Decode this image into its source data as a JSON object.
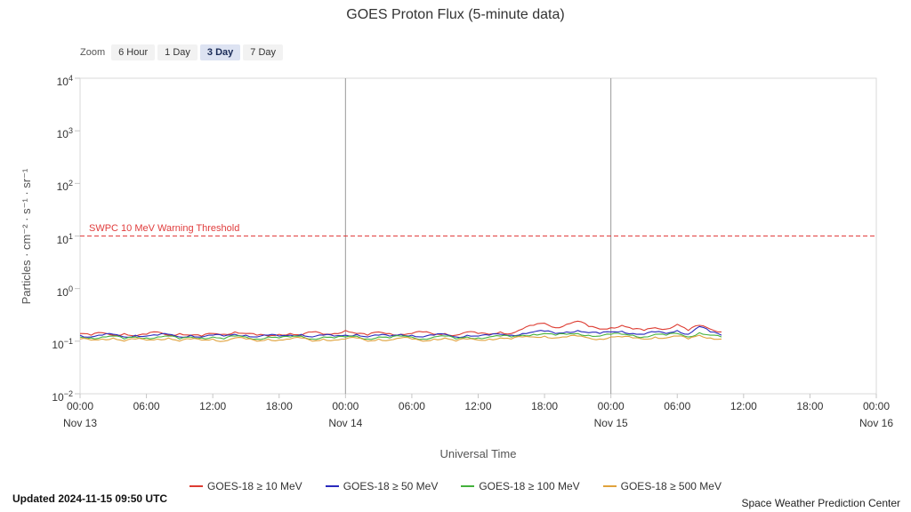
{
  "header": {
    "title": "GOES Proton Flux (5-minute data)"
  },
  "zoom": {
    "label": "Zoom",
    "options": [
      {
        "label": "6 Hour",
        "selected": false
      },
      {
        "label": "1 Day",
        "selected": false
      },
      {
        "label": "3 Day",
        "selected": true
      },
      {
        "label": "7 Day",
        "selected": false
      }
    ]
  },
  "footer": {
    "updated": "Updated 2024-11-15 09:50 UTC",
    "credit": "Space Weather Prediction Center"
  },
  "chart_data": {
    "type": "line",
    "title": "GOES Proton Flux (5-minute data)",
    "xlabel": "Universal Time",
    "ylabel": "Particles · cm⁻² · s⁻¹ · sr⁻¹",
    "y_scale": "log",
    "ylim_exponents": [
      -2,
      4
    ],
    "y_tick_exponents": [
      4,
      3,
      2,
      1,
      0,
      -1,
      -2
    ],
    "x_range_hours": [
      0,
      72
    ],
    "x_tick_interval_hours": 6,
    "x_tick_labels": [
      "00:00",
      "06:00",
      "12:00",
      "18:00",
      "00:00",
      "06:00",
      "12:00",
      "18:00",
      "00:00",
      "06:00",
      "12:00",
      "18:00",
      "00:00"
    ],
    "x_day_labels": [
      {
        "label": "Nov 13",
        "hour": 0
      },
      {
        "label": "Nov 14",
        "hour": 24
      },
      {
        "label": "Nov 15",
        "hour": 48
      },
      {
        "label": "Nov 16",
        "hour": 72
      }
    ],
    "day_gridline_hours": [
      24,
      48
    ],
    "grid": false,
    "legend_position": "bottom",
    "threshold": {
      "label": "SWPC 10 MeV Warning Threshold",
      "value": 10,
      "color": "#e03c3c"
    },
    "sample_interval_hours": 1,
    "series": [
      {
        "name": "GOES-18 ≥ 10 MeV",
        "color": "#dd3c32",
        "values": [
          0.14,
          0.13,
          0.145,
          0.13,
          0.14,
          0.125,
          0.135,
          0.15,
          0.13,
          0.14,
          0.13,
          0.125,
          0.14,
          0.135,
          0.15,
          0.14,
          0.13,
          0.125,
          0.135,
          0.14,
          0.13,
          0.15,
          0.135,
          0.14,
          0.16,
          0.14,
          0.13,
          0.15,
          0.14,
          0.135,
          0.14,
          0.15,
          0.135,
          0.14,
          0.13,
          0.15,
          0.14,
          0.135,
          0.15,
          0.14,
          0.17,
          0.2,
          0.22,
          0.18,
          0.21,
          0.24,
          0.19,
          0.17,
          0.18,
          0.2,
          0.17,
          0.16,
          0.18,
          0.17,
          0.21,
          0.16,
          0.2,
          0.17,
          0.15
        ]
      },
      {
        "name": "GOES-18 ≥ 50 MeV",
        "color": "#2a2abd",
        "values": [
          0.13,
          0.12,
          0.13,
          0.135,
          0.12,
          0.13,
          0.125,
          0.13,
          0.135,
          0.12,
          0.13,
          0.12,
          0.13,
          0.125,
          0.135,
          0.13,
          0.12,
          0.13,
          0.125,
          0.13,
          0.135,
          0.12,
          0.13,
          0.125,
          0.13,
          0.135,
          0.12,
          0.13,
          0.125,
          0.135,
          0.13,
          0.12,
          0.13,
          0.135,
          0.12,
          0.13,
          0.125,
          0.13,
          0.135,
          0.13,
          0.14,
          0.15,
          0.155,
          0.14,
          0.15,
          0.16,
          0.145,
          0.14,
          0.15,
          0.155,
          0.14,
          0.135,
          0.15,
          0.14,
          0.16,
          0.135,
          0.19,
          0.15,
          0.13
        ]
      },
      {
        "name": "GOES-18 ≥ 100 MeV",
        "color": "#44b13c",
        "values": [
          0.12,
          0.115,
          0.12,
          0.125,
          0.11,
          0.12,
          0.115,
          0.12,
          0.125,
          0.11,
          0.12,
          0.115,
          0.12,
          0.11,
          0.125,
          0.12,
          0.11,
          0.12,
          0.115,
          0.12,
          0.125,
          0.11,
          0.12,
          0.115,
          0.12,
          0.125,
          0.11,
          0.12,
          0.115,
          0.125,
          0.12,
          0.11,
          0.12,
          0.125,
          0.11,
          0.12,
          0.115,
          0.12,
          0.125,
          0.12,
          0.13,
          0.135,
          0.14,
          0.13,
          0.135,
          0.14,
          0.13,
          0.125,
          0.135,
          0.135,
          0.13,
          0.12,
          0.135,
          0.13,
          0.14,
          0.12,
          0.145,
          0.13,
          0.12
        ]
      },
      {
        "name": "GOES-18 ≥ 500 MeV",
        "color": "#e0a23c",
        "values": [
          0.11,
          0.105,
          0.11,
          0.115,
          0.1,
          0.11,
          0.105,
          0.11,
          0.115,
          0.1,
          0.11,
          0.105,
          0.11,
          0.1,
          0.115,
          0.11,
          0.1,
          0.11,
          0.105,
          0.11,
          0.115,
          0.1,
          0.11,
          0.105,
          0.11,
          0.115,
          0.1,
          0.11,
          0.105,
          0.115,
          0.11,
          0.1,
          0.11,
          0.115,
          0.1,
          0.11,
          0.105,
          0.11,
          0.115,
          0.11,
          0.12,
          0.12,
          0.125,
          0.115,
          0.12,
          0.125,
          0.115,
          0.11,
          0.12,
          0.12,
          0.115,
          0.11,
          0.12,
          0.115,
          0.125,
          0.11,
          0.13,
          0.115,
          0.11
        ]
      }
    ]
  }
}
